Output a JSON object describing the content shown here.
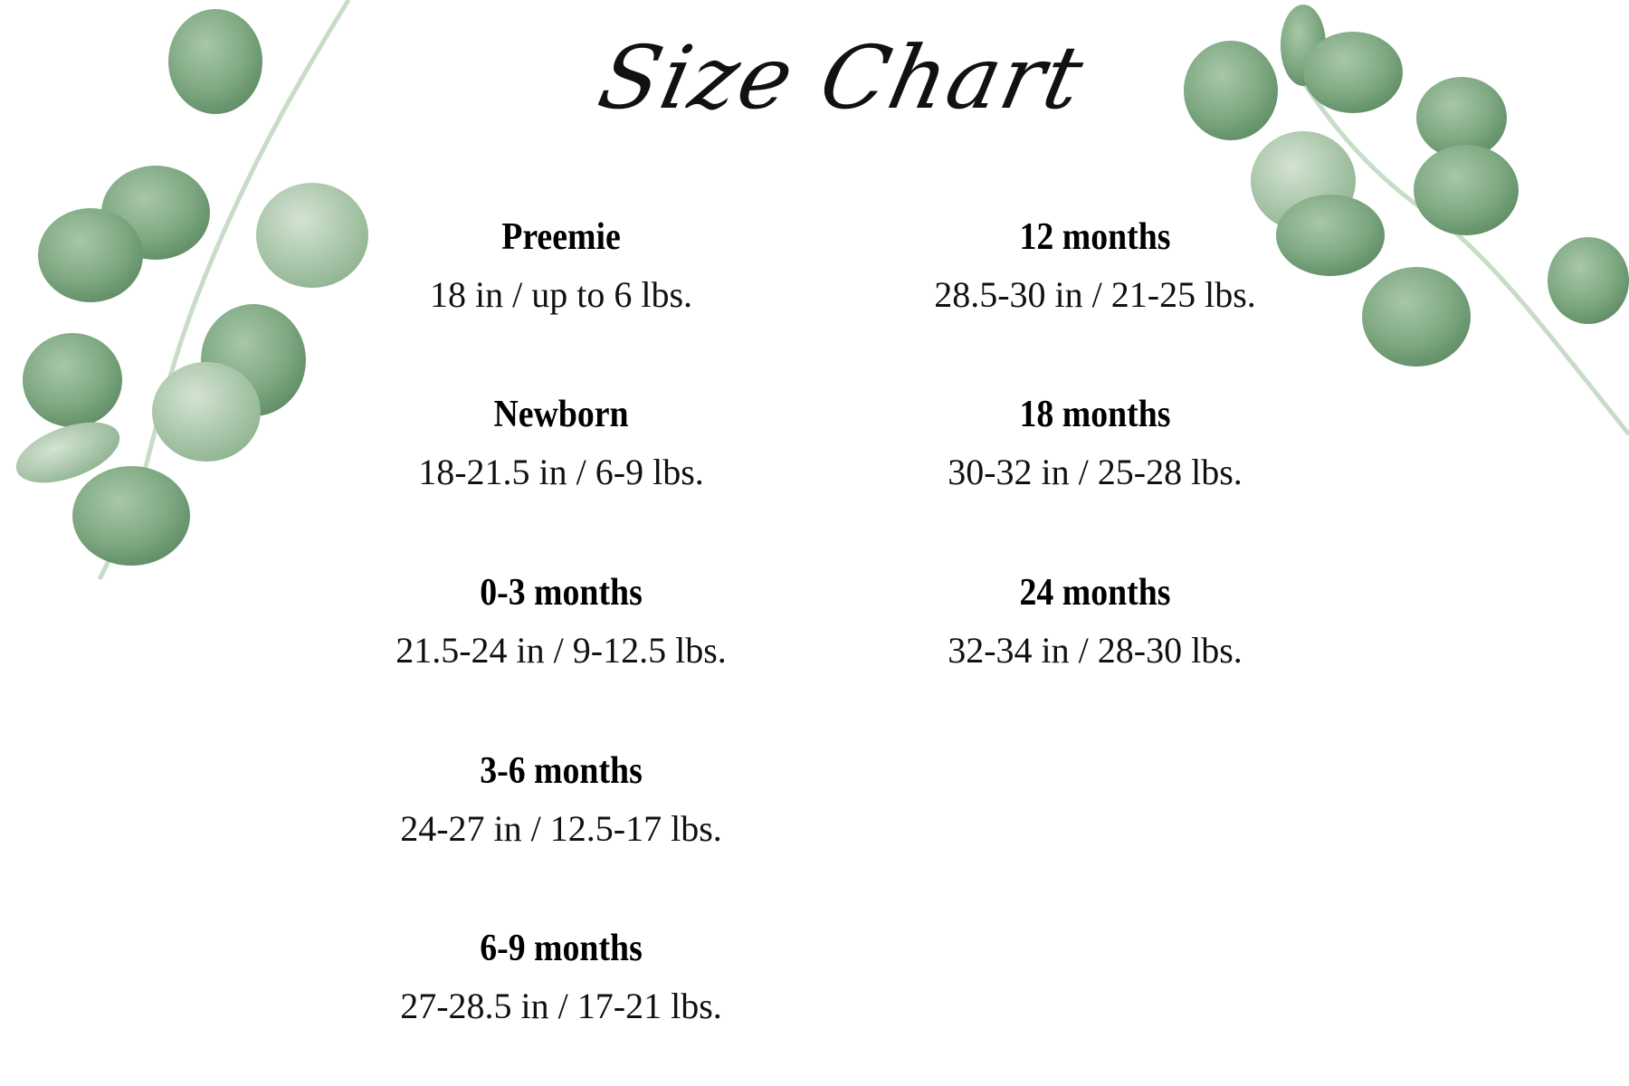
{
  "title": "Size Chart",
  "colors": {
    "leaf_dark": "#6f9a72",
    "leaf_light": "#b9d1b9",
    "stem": "#c9dcc8",
    "text": "#111111"
  },
  "decoration": [
    "eucalyptus-branch-left",
    "eucalyptus-branch-right"
  ],
  "sizes_left": [
    {
      "name": "Preemie",
      "measure": "18 in / up to 6 lbs."
    },
    {
      "name": "Newborn",
      "measure": "18-21.5 in / 6-9 lbs."
    },
    {
      "name": "0-3 months",
      "measure": "21.5-24 in / 9-12.5 lbs."
    },
    {
      "name": "3-6 months",
      "measure": "24-27 in / 12.5-17 lbs."
    },
    {
      "name": "6-9 months",
      "measure": "27-28.5 in / 17-21 lbs."
    }
  ],
  "sizes_right": [
    {
      "name": "12 months",
      "measure": "28.5-30 in / 21-25 lbs."
    },
    {
      "name": "18 months",
      "measure": "30-32 in / 25-28 lbs."
    },
    {
      "name": "24 months",
      "measure": "32-34 in / 28-30 lbs."
    }
  ]
}
